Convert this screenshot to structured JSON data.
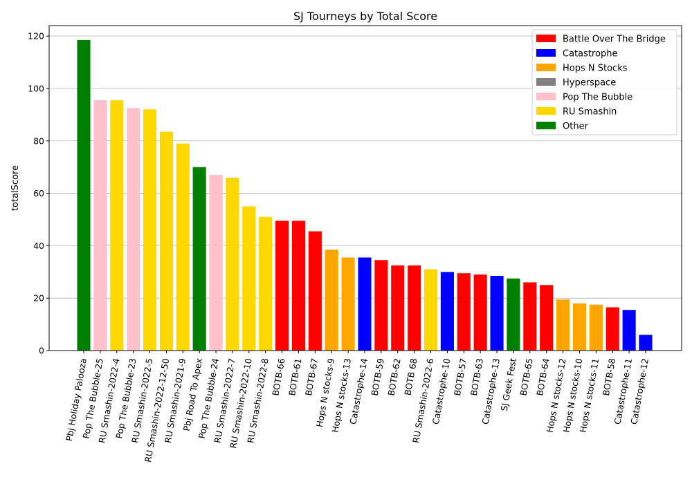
{
  "chart_data": {
    "type": "bar",
    "title": "SJ Tourneys by Total Score",
    "xlabel": "",
    "ylabel": "totalScore",
    "ylim": [
      0,
      124
    ],
    "yticks": [
      0,
      20,
      40,
      60,
      80,
      100,
      120
    ],
    "grid": "y",
    "legend_position": "top-right",
    "legend": [
      {
        "label": "Battle Over The Bridge",
        "color": "#ff0000"
      },
      {
        "label": "Catastrophe",
        "color": "#0000ff"
      },
      {
        "label": "Hops N Stocks",
        "color": "#ffa500"
      },
      {
        "label": "Hyperspace",
        "color": "#808080"
      },
      {
        "label": "Pop The Bubble",
        "color": "#ffc0cb"
      },
      {
        "label": "RU Smashin",
        "color": "#ffd700"
      },
      {
        "label": "Other",
        "color": "#008000"
      }
    ],
    "bars": [
      {
        "label": "Pbj Holiday Palooza",
        "value": 118.5,
        "color": "#008000"
      },
      {
        "label": "Pop The Bubble-25",
        "value": 95.5,
        "color": "#ffc0cb"
      },
      {
        "label": "RU Smashin-2022-4",
        "value": 95.5,
        "color": "#ffd700"
      },
      {
        "label": "Pop The Bubble-23",
        "value": 92.5,
        "color": "#ffc0cb"
      },
      {
        "label": "RU Smashin-2022-5",
        "value": 92,
        "color": "#ffd700"
      },
      {
        "label": "RU Smashin-2022-12-50",
        "value": 83.5,
        "color": "#ffd700"
      },
      {
        "label": "RU Smashin-2021-9",
        "value": 79,
        "color": "#ffd700"
      },
      {
        "label": "Pbj Road To Apex",
        "value": 70,
        "color": "#008000"
      },
      {
        "label": "Pop The Bubble-24",
        "value": 67,
        "color": "#ffc0cb"
      },
      {
        "label": "RU Smashin-2022-7",
        "value": 66,
        "color": "#ffd700"
      },
      {
        "label": "RU Smashin-2022-10",
        "value": 55,
        "color": "#ffd700"
      },
      {
        "label": "RU Smashin-2022-8",
        "value": 51,
        "color": "#ffd700"
      },
      {
        "label": "BOTB-66",
        "value": 49.5,
        "color": "#ff0000"
      },
      {
        "label": "BOTB-61",
        "value": 49.5,
        "color": "#ff0000"
      },
      {
        "label": "BOTB-67",
        "value": 45.5,
        "color": "#ff0000"
      },
      {
        "label": "Hops N stocks-9",
        "value": 38.5,
        "color": "#ffa500"
      },
      {
        "label": "Hops N stocks-13",
        "value": 35.5,
        "color": "#ffa500"
      },
      {
        "label": "Catastrophe-14",
        "value": 35.5,
        "color": "#0000ff"
      },
      {
        "label": "BOTB-59",
        "value": 34.5,
        "color": "#ff0000"
      },
      {
        "label": "BOTB-62",
        "value": 32.5,
        "color": "#ff0000"
      },
      {
        "label": "BOTB 68",
        "value": 32.5,
        "color": "#ff0000"
      },
      {
        "label": "RU Smashin-2022-6",
        "value": 31,
        "color": "#ffd700"
      },
      {
        "label": "Catastrophe-10",
        "value": 30,
        "color": "#0000ff"
      },
      {
        "label": "BOTB-57",
        "value": 29.5,
        "color": "#ff0000"
      },
      {
        "label": "BOTB-63",
        "value": 29,
        "color": "#ff0000"
      },
      {
        "label": "Catastrophe-13",
        "value": 28.5,
        "color": "#0000ff"
      },
      {
        "label": "SJ Geek Fest",
        "value": 27.5,
        "color": "#008000"
      },
      {
        "label": "BOTB-65",
        "value": 26,
        "color": "#ff0000"
      },
      {
        "label": "BOTB-64",
        "value": 25,
        "color": "#ff0000"
      },
      {
        "label": "Hops N stocks-12",
        "value": 19.5,
        "color": "#ffa500"
      },
      {
        "label": "Hops N stocks-10",
        "value": 18,
        "color": "#ffa500"
      },
      {
        "label": "Hops N stocks-11",
        "value": 17.5,
        "color": "#ffa500"
      },
      {
        "label": "BOTB-58",
        "value": 16.5,
        "color": "#ff0000"
      },
      {
        "label": "Catastrophe-11",
        "value": 15.5,
        "color": "#0000ff"
      },
      {
        "label": "Catastrophe-12",
        "value": 6,
        "color": "#0000ff"
      }
    ]
  }
}
